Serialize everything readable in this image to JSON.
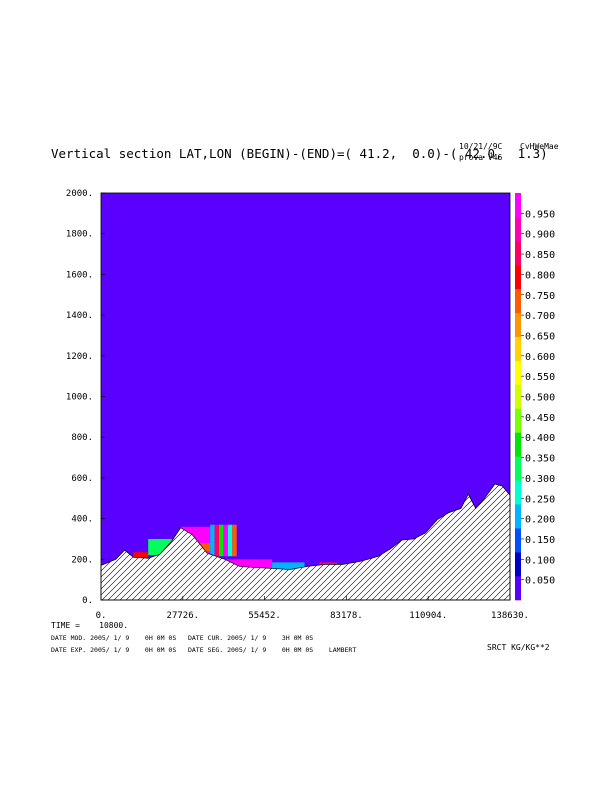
{
  "header": {
    "title": "Vertical section LAT,LON (BEGIN)-(END)=( 41.2,  0.0)-( 42.0,  1.3)",
    "date": "10/21//9C",
    "run": "prova V46",
    "code": "CvHWeMae"
  },
  "footer": {
    "time": "TIME =    10800.",
    "line1": "DATE MOD. 2005/ 1/ 9    0H 0M 0S   DATE CUR. 2005/ 1/ 9    3H 0M 0S",
    "line2": "DATE EXP. 2005/ 1/ 9    0H 0M 0S   DATE SEG. 2005/ 1/ 9    0H 0M 0S    LAMBERT",
    "units": "SRCT KG/KG**2"
  },
  "colors": {
    "background_field": "#5a00ff",
    "scale": [
      "#5a00ff",
      "#0000c8",
      "#0050ff",
      "#00b4ff",
      "#00ffd2",
      "#00ff5a",
      "#00e600",
      "#78ff00",
      "#d2ff00",
      "#ffff00",
      "#ffd200",
      "#ff9600",
      "#ff5a00",
      "#ff0000",
      "#ff0064",
      "#ff00b4",
      "#ff00ff"
    ]
  },
  "chart_data": {
    "type": "heatmap",
    "title": "Vertical section LAT,LON (BEGIN)-(END)=( 41.2,  0.0)-( 42.0,  1.3)",
    "xlabel": "",
    "ylabel": "",
    "xlim": [
      0,
      138630
    ],
    "ylim": [
      0,
      2000
    ],
    "x_ticks": [
      "0.",
      "27726.",
      "55452.",
      "83178.",
      "110904.",
      "138630."
    ],
    "y_ticks": [
      "0.",
      "200.",
      "400.",
      "600.",
      "800.",
      "1000.",
      "1200.",
      "1400.",
      "1600.",
      "1800.",
      "2000."
    ],
    "colorbar_labels": [
      "0.950",
      "0.900",
      "0.850",
      "0.800",
      "0.750",
      "0.700",
      "0.650",
      "0.600",
      "0.550",
      "0.500",
      "0.450",
      "0.400",
      "0.350",
      "0.300",
      "0.250",
      "0.200",
      "0.150",
      "0.100",
      "0.050"
    ],
    "terrain_profile": [
      [
        0,
        170
      ],
      [
        5000,
        200
      ],
      [
        8000,
        245
      ],
      [
        11000,
        210
      ],
      [
        16000,
        205
      ],
      [
        20000,
        225
      ],
      [
        24000,
        290
      ],
      [
        27000,
        355
      ],
      [
        31000,
        320
      ],
      [
        36000,
        230
      ],
      [
        42000,
        200
      ],
      [
        47000,
        165
      ],
      [
        52000,
        160
      ],
      [
        58000,
        155
      ],
      [
        64000,
        150
      ],
      [
        70000,
        165
      ],
      [
        76000,
        175
      ],
      [
        82000,
        175
      ],
      [
        88000,
        190
      ],
      [
        94000,
        215
      ],
      [
        98000,
        250
      ],
      [
        102000,
        295
      ],
      [
        106000,
        300
      ],
      [
        110000,
        330
      ],
      [
        114000,
        395
      ],
      [
        118000,
        430
      ],
      [
        122000,
        450
      ],
      [
        124500,
        520
      ],
      [
        127000,
        450
      ],
      [
        130000,
        500
      ],
      [
        133500,
        570
      ],
      [
        136000,
        560
      ],
      [
        138630,
        515
      ]
    ],
    "field_patches": [
      {
        "x": [
          11000,
          16000
        ],
        "y": [
          205,
          235
        ],
        "value": 0.75
      },
      {
        "x": [
          16000,
          24000
        ],
        "y": [
          220,
          300
        ],
        "value": 0.3
      },
      {
        "x": [
          27000,
          37000
        ],
        "y": [
          230,
          360
        ],
        "value": 0.95
      },
      {
        "x": [
          31000,
          37000
        ],
        "y": [
          240,
          280
        ],
        "value": 0.7
      },
      {
        "x": [
          37000,
          46000
        ],
        "y": [
          215,
          370
        ],
        "value": 0.45
      },
      {
        "x": [
          40000,
          58000
        ],
        "y": [
          130,
          200
        ],
        "value": 0.95
      },
      {
        "x": [
          58000,
          69000
        ],
        "y": [
          150,
          185
        ],
        "value": 0.2
      },
      {
        "x": [
          74000,
          80000
        ],
        "y": [
          170,
          185
        ],
        "value": 0.85
      }
    ]
  }
}
